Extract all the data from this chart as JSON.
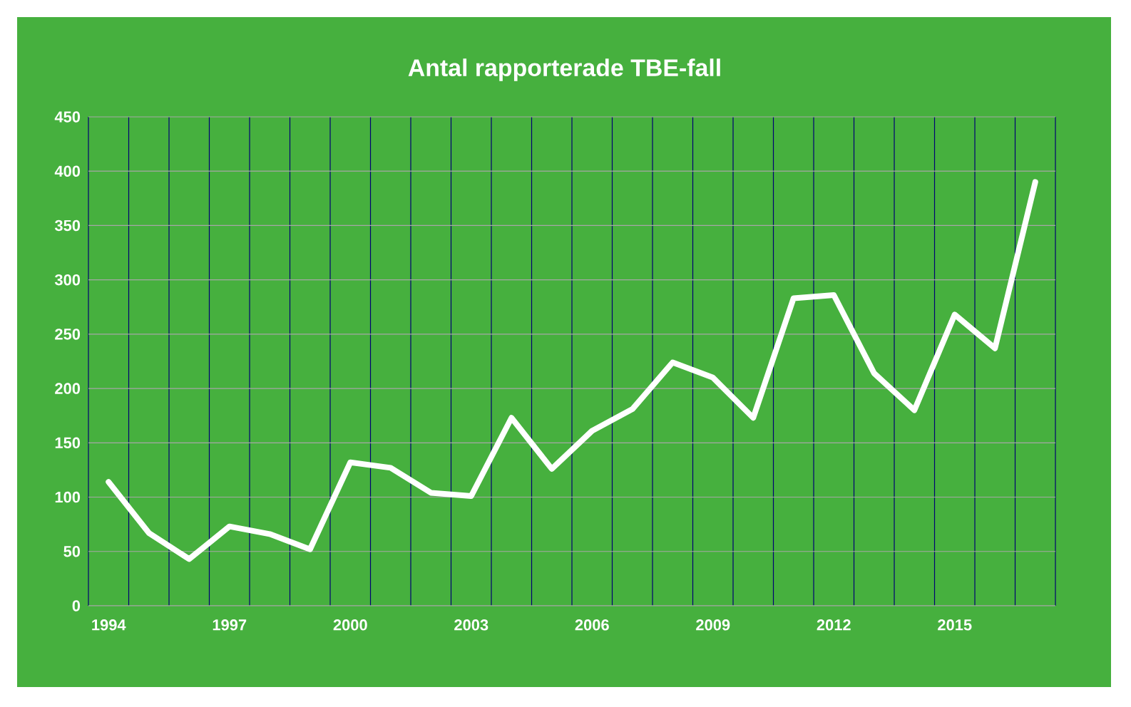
{
  "chart_data": {
    "type": "line",
    "title": "Antal rapporterade TBE-fall",
    "categories": [
      "1994",
      null,
      null,
      "1997",
      null,
      null,
      "2000",
      null,
      null,
      "2003",
      null,
      null,
      "2006",
      null,
      null,
      "2009",
      null,
      null,
      "2012",
      null,
      null,
      "2015",
      null,
      null
    ],
    "series": [
      {
        "color": "#ffffff",
        "values": [
          114,
          67,
          43,
          73,
          66,
          52,
          132,
          127,
          104,
          101,
          173,
          126,
          161,
          181,
          224,
          210,
          173,
          283,
          286,
          214,
          180,
          268,
          237,
          390
        ]
      }
    ],
    "ylim": [
      0,
      450
    ],
    "yticks": [
      0,
      50,
      100,
      150,
      200,
      250,
      300,
      350,
      400,
      450
    ],
    "grid": true,
    "marker": "none",
    "line_style": "solid"
  }
}
